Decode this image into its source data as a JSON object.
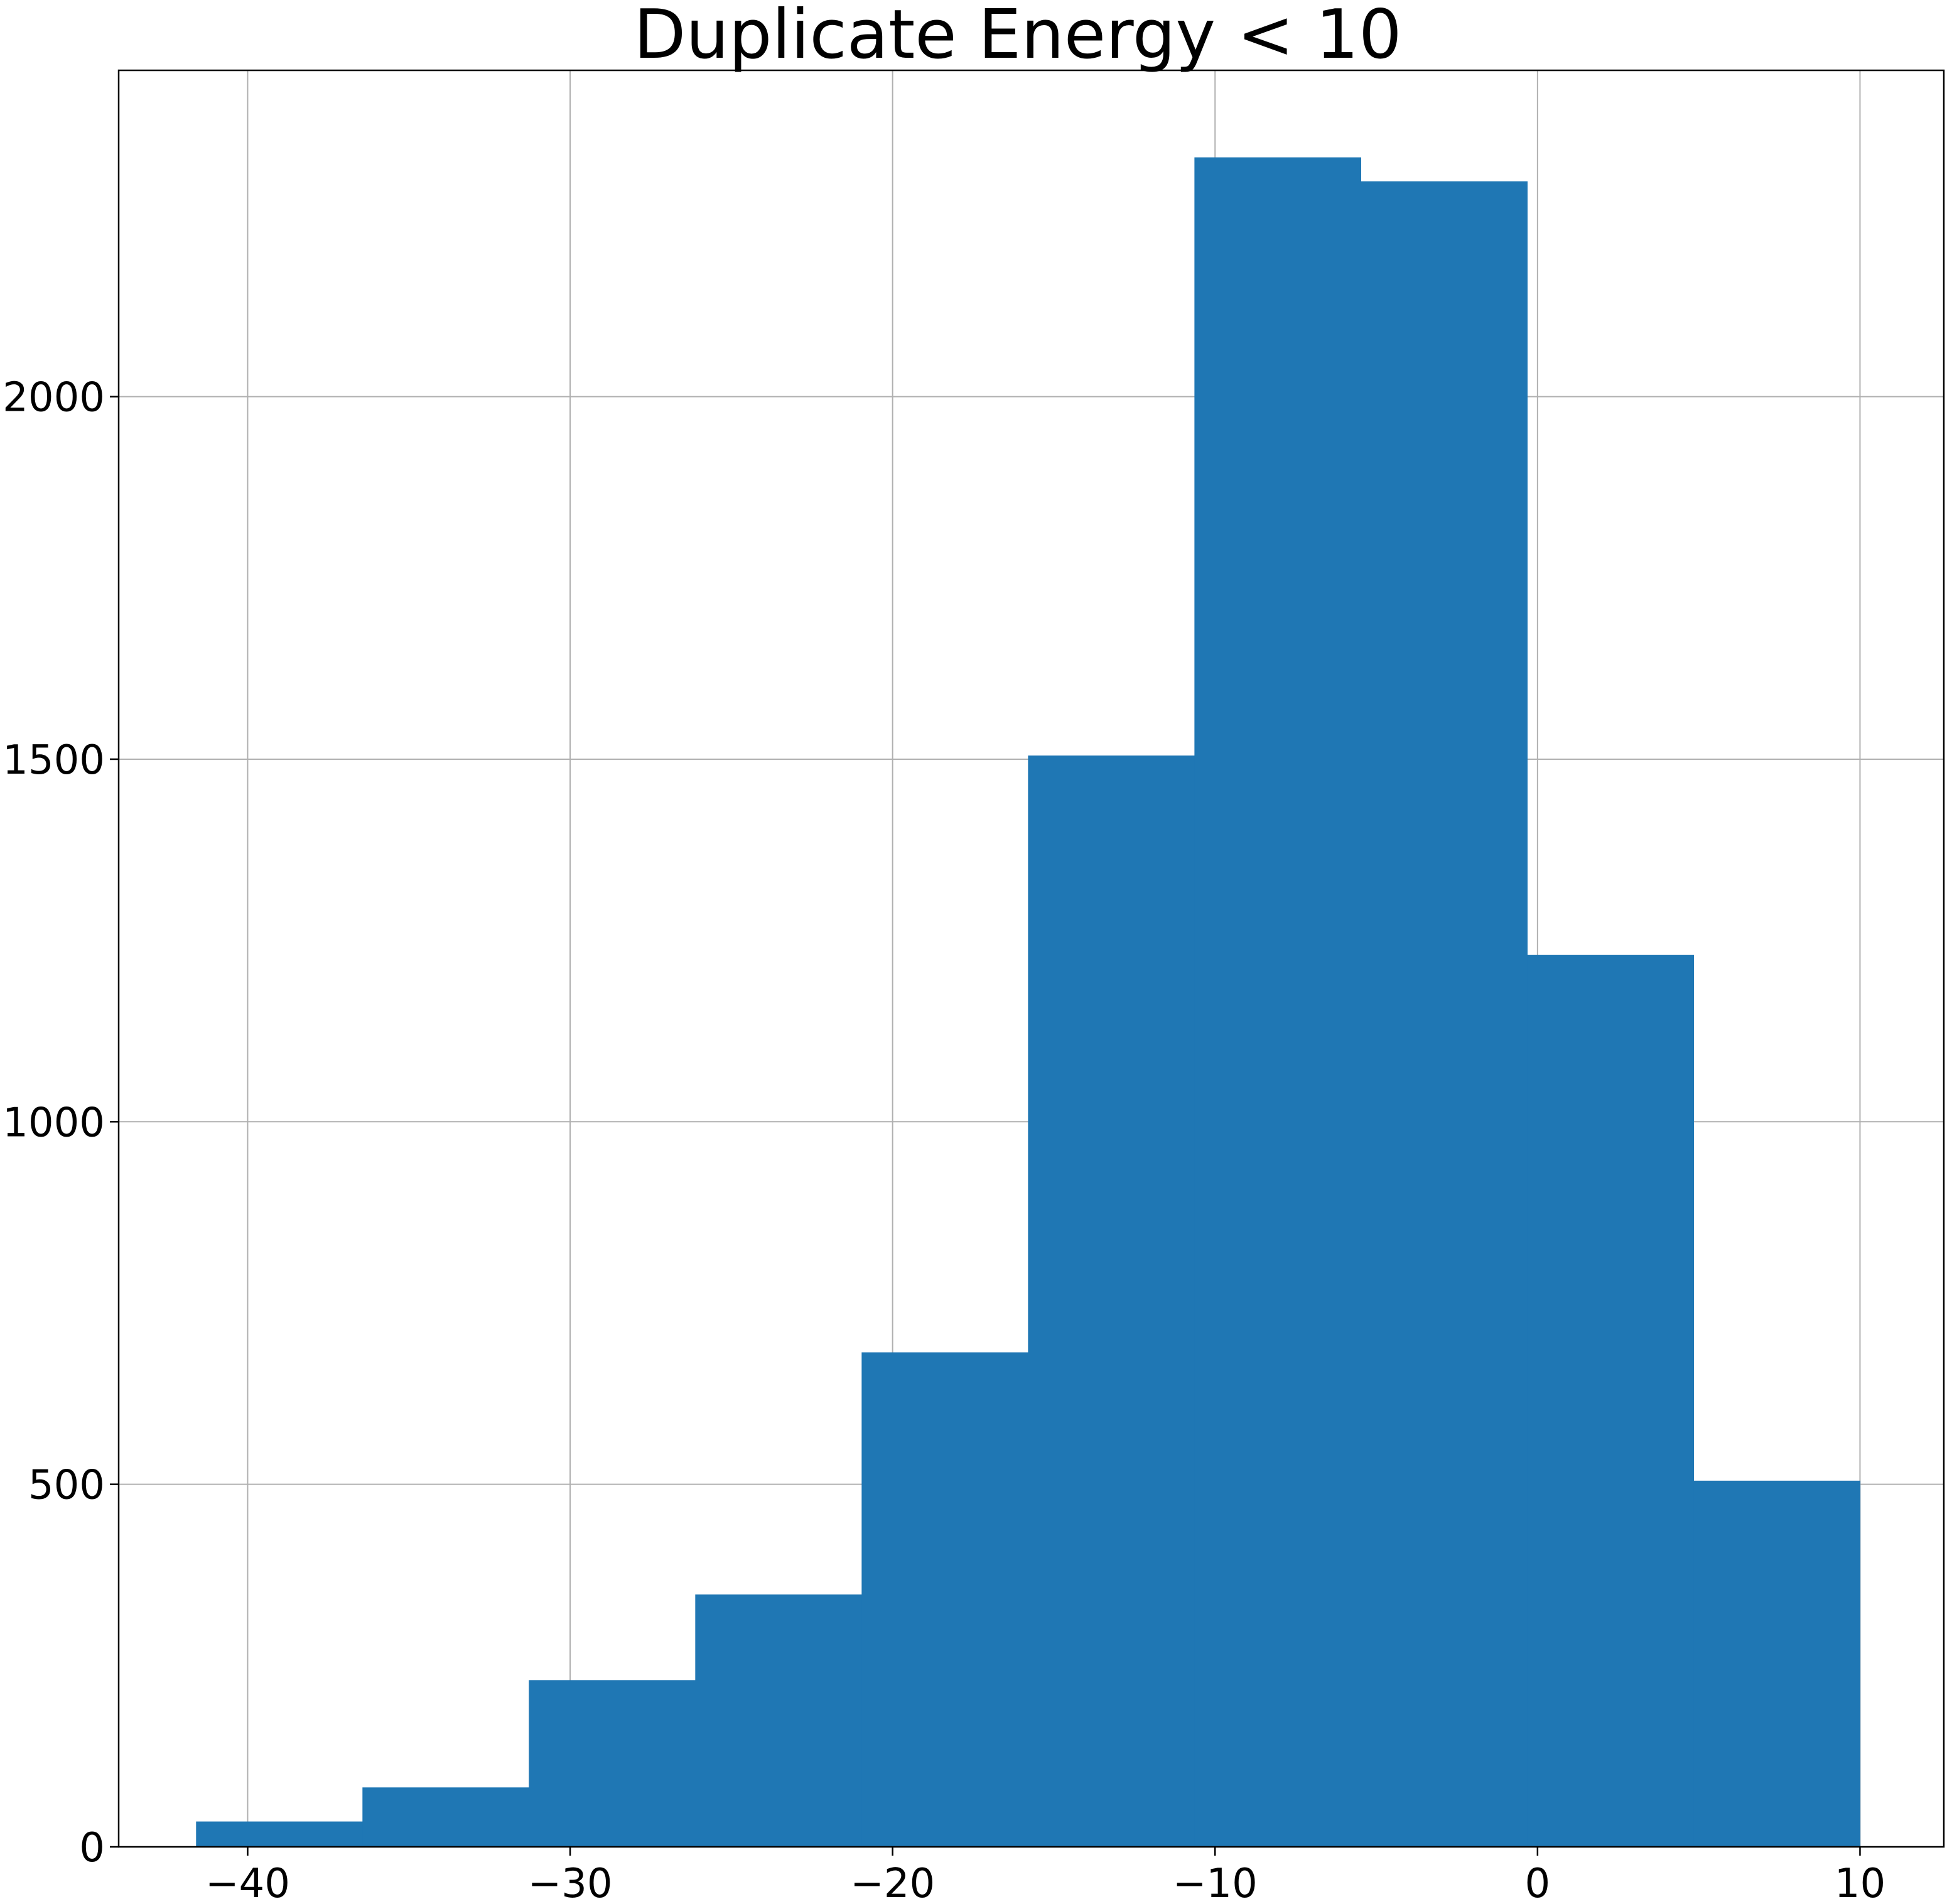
{
  "chart_data": {
    "type": "bar",
    "variant": "histogram",
    "title": "Duplicate Energy < 10",
    "xlabel": "",
    "ylabel": "",
    "grid": true,
    "legend": "none",
    "color": "#1f77b4",
    "xlim": [
      -44.0,
      12.6
    ],
    "ylim": [
      0,
      2450
    ],
    "bin_edges": [
      -41.6,
      -36.44,
      -31.28,
      -26.12,
      -20.96,
      -15.8,
      -10.64,
      -5.48,
      -0.32,
      4.84,
      10.0
    ],
    "values": [
      35,
      82,
      230,
      348,
      682,
      1505,
      2330,
      2297,
      1230,
      505
    ],
    "x_ticks": [
      -40,
      -30,
      -20,
      -10,
      0,
      10
    ],
    "x_tick_labels": [
      "−40",
      "−30",
      "−20",
      "−10",
      "0",
      "10"
    ],
    "y_ticks": [
      0,
      500,
      1000,
      1500,
      2000
    ],
    "y_tick_labels": [
      "0",
      "500",
      "1000",
      "1500",
      "2000"
    ]
  }
}
